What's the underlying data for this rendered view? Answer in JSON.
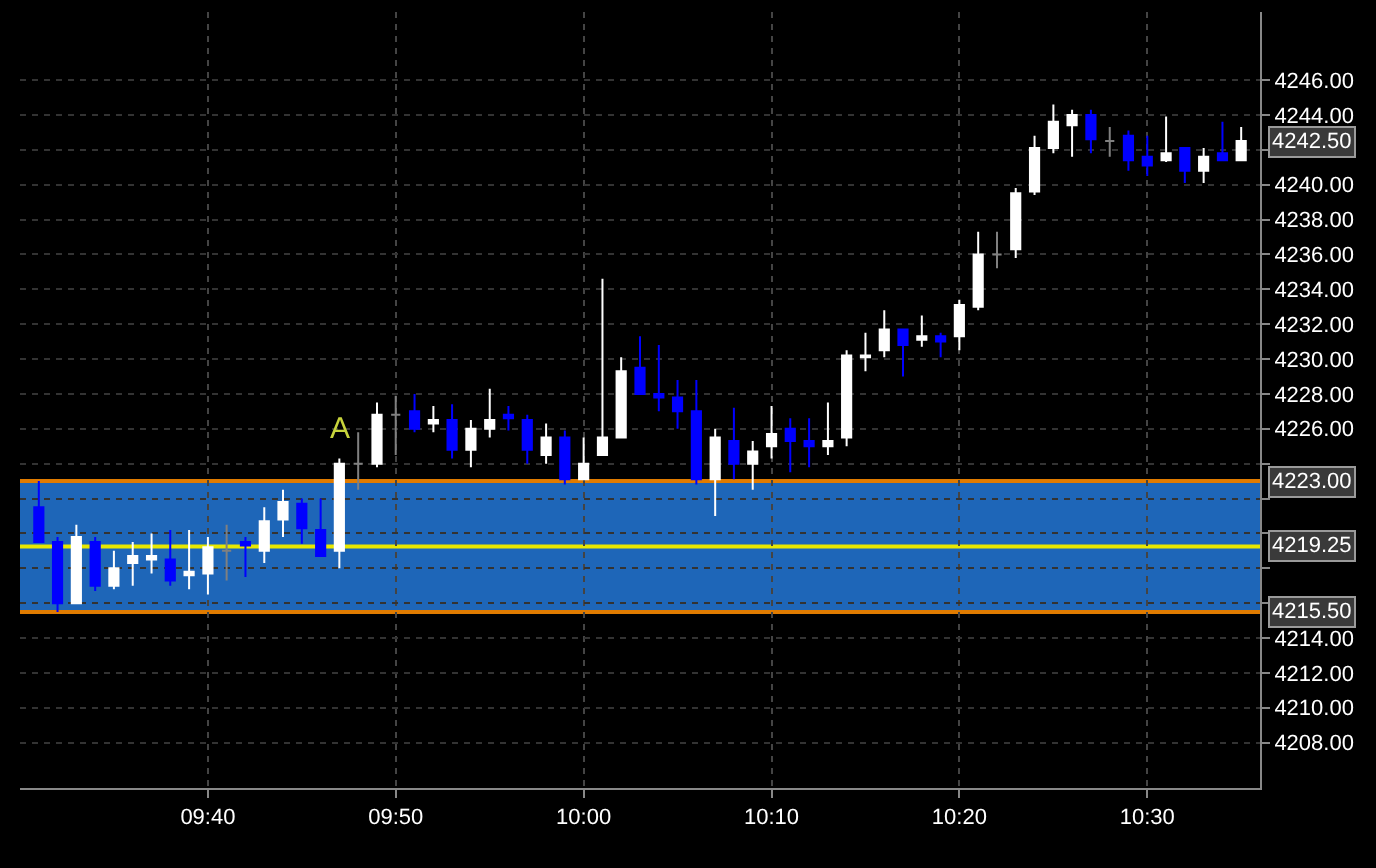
{
  "chart_data": {
    "type": "candlestick",
    "x": [
      9.5167,
      9.5333,
      9.55,
      9.5667,
      9.5833,
      9.6,
      9.6167,
      9.6333,
      9.65,
      9.6667,
      9.6833,
      9.7,
      9.7167,
      9.7333,
      9.75,
      9.7667,
      9.7833,
      9.8,
      9.8167,
      9.8333,
      9.85,
      9.8667,
      9.8833,
      9.9,
      9.9167,
      9.9333,
      9.95,
      9.9667,
      9.9833,
      10,
      10.0167,
      10.0333,
      10.05,
      10.0667,
      10.0833,
      10.1,
      10.1167,
      10.1333,
      10.15,
      10.1667,
      10.1833,
      10.2,
      10.2167,
      10.2333,
      10.25,
      10.2667,
      10.2833,
      10.3,
      10.3167,
      10.3333,
      10.35,
      10.3667,
      10.3833,
      10.4,
      10.4167,
      10.4333,
      10.45,
      10.4667,
      10.4833,
      10.5,
      10.5167,
      10.5333,
      10.55,
      10.5667,
      10.5833
    ],
    "ohlc": [
      [
        4221.5,
        4223.0,
        4219.5,
        4219.5
      ],
      [
        4219.5,
        4219.8,
        4215.5,
        4216.0
      ],
      [
        4216.0,
        4220.5,
        4216.0,
        4219.8
      ],
      [
        4219.5,
        4219.8,
        4216.7,
        4217.0
      ],
      [
        4217.0,
        4219.0,
        4216.8,
        4218.0
      ],
      [
        4218.3,
        4219.5,
        4217.0,
        4218.7
      ],
      [
        4218.5,
        4220.0,
        4217.7,
        4218.7
      ],
      [
        4218.5,
        4220.2,
        4217.0,
        4217.3
      ],
      [
        4217.6,
        4220.2,
        4216.8,
        4217.8
      ],
      [
        4217.7,
        4219.8,
        4216.5,
        4219.2
      ],
      [
        4219.0,
        4220.5,
        4217.3,
        4219.0
      ],
      [
        4219.5,
        4219.8,
        4217.5,
        4219.3
      ],
      [
        4219.0,
        4221.5,
        4218.3,
        4220.7
      ],
      [
        4220.8,
        4222.5,
        4219.8,
        4221.8
      ],
      [
        4221.7,
        4222.0,
        4219.4,
        4220.3
      ],
      [
        4220.2,
        4222.0,
        4218.7,
        4218.7
      ],
      [
        4219.0,
        4224.3,
        4218.0,
        4224.0
      ],
      [
        4224.0,
        4225.8,
        4222.5,
        4224.0
      ],
      [
        4224.0,
        4227.5,
        4223.8,
        4226.8
      ],
      [
        4226.8,
        4227.9,
        4224.5,
        4226.8
      ],
      [
        4227.0,
        4228.0,
        4225.8,
        4226.0
      ],
      [
        4226.3,
        4227.3,
        4225.8,
        4226.5
      ],
      [
        4226.5,
        4227.4,
        4224.3,
        4224.8
      ],
      [
        4224.8,
        4226.5,
        4223.8,
        4226.0
      ],
      [
        4226.0,
        4228.3,
        4225.5,
        4226.5
      ],
      [
        4226.8,
        4227.3,
        4225.9,
        4226.6
      ],
      [
        4226.5,
        4226.8,
        4224.0,
        4224.8
      ],
      [
        4224.5,
        4226.3,
        4224.0,
        4225.5
      ],
      [
        4225.5,
        4225.9,
        4222.8,
        4223.1
      ],
      [
        4223.1,
        4225.5,
        4223.1,
        4224.0
      ],
      [
        4224.5,
        4234.6,
        4224.5,
        4225.5
      ],
      [
        4225.5,
        4230.1,
        4225.5,
        4229.3
      ],
      [
        4229.5,
        4231.3,
        4228.0,
        4228.0
      ],
      [
        4228.0,
        4230.8,
        4227.0,
        4227.8
      ],
      [
        4227.8,
        4228.8,
        4226.0,
        4227.0
      ],
      [
        4227.0,
        4228.8,
        4222.8,
        4223.1
      ],
      [
        4223.1,
        4226.0,
        4221.0,
        4225.5
      ],
      [
        4225.3,
        4227.2,
        4223.1,
        4224.0
      ],
      [
        4224.0,
        4225.3,
        4222.5,
        4224.7
      ],
      [
        4225.0,
        4227.3,
        4224.3,
        4225.7
      ],
      [
        4226.0,
        4226.6,
        4223.5,
        4225.3
      ],
      [
        4225.3,
        4226.6,
        4223.8,
        4225.0
      ],
      [
        4225.0,
        4227.5,
        4224.5,
        4225.3
      ],
      [
        4225.5,
        4230.5,
        4225.0,
        4230.2
      ],
      [
        4230.1,
        4231.5,
        4229.3,
        4230.2
      ],
      [
        4230.5,
        4232.8,
        4230.1,
        4231.7
      ],
      [
        4231.7,
        4231.7,
        4229.0,
        4230.8
      ],
      [
        4231.1,
        4232.5,
        4230.7,
        4231.3
      ],
      [
        4231.3,
        4231.5,
        4230.1,
        4231.0
      ],
      [
        4231.3,
        4233.4,
        4230.5,
        4233.1
      ],
      [
        4233.0,
        4237.3,
        4232.8,
        4236.0
      ],
      [
        4236.0,
        4237.3,
        4235.2,
        4236.0
      ],
      [
        4236.3,
        4239.8,
        4235.8,
        4239.5
      ],
      [
        4239.6,
        4242.8,
        4239.4,
        4242.1
      ],
      [
        4242.1,
        4244.6,
        4241.8,
        4243.6
      ],
      [
        4243.4,
        4244.3,
        4241.6,
        4244.0
      ],
      [
        4244.0,
        4244.3,
        4241.8,
        4242.6
      ],
      [
        4242.5,
        4243.3,
        4241.6,
        4242.5
      ],
      [
        4242.8,
        4243.1,
        4240.8,
        4241.4
      ],
      [
        4241.6,
        4242.8,
        4240.5,
        4241.1
      ],
      [
        4241.4,
        4243.9,
        4241.3,
        4241.8
      ],
      [
        4242.1,
        4242.1,
        4240.1,
        4240.8
      ],
      [
        4240.8,
        4242.1,
        4240.1,
        4241.6
      ],
      [
        4241.8,
        4243.6,
        4241.4,
        4241.4
      ],
      [
        4241.4,
        4243.3,
        4241.4,
        4242.5
      ]
    ],
    "colors": [
      "#0000ff",
      "#0000ff",
      "#ffffff",
      "#0000ff",
      "#ffffff",
      "#ffffff",
      "#ffffff",
      "#0000ff",
      "#ffffff",
      "#ffffff",
      "#808080",
      "#0000ff",
      "#ffffff",
      "#ffffff",
      "#0000ff",
      "#0000ff",
      "#ffffff",
      "#808080",
      "#ffffff",
      "#808080",
      "#0000ff",
      "#ffffff",
      "#0000ff",
      "#ffffff",
      "#ffffff",
      "#0000ff",
      "#0000ff",
      "#ffffff",
      "#0000ff",
      "#ffffff",
      "#ffffff",
      "#ffffff",
      "#0000ff",
      "#0000ff",
      "#0000ff",
      "#0000ff",
      "#ffffff",
      "#0000ff",
      "#ffffff",
      "#ffffff",
      "#0000ff",
      "#0000ff",
      "#ffffff",
      "#ffffff",
      "#ffffff",
      "#ffffff",
      "#0000ff",
      "#ffffff",
      "#0000ff",
      "#ffffff",
      "#ffffff",
      "#808080",
      "#ffffff",
      "#ffffff",
      "#ffffff",
      "#ffffff",
      "#0000ff",
      "#808080",
      "#0000ff",
      "#0000ff",
      "#ffffff",
      "#0000ff",
      "#ffffff",
      "#0000ff",
      "#ffffff"
    ],
    "xlim": [
      9.5,
      10.6
    ],
    "xticks": [
      {
        "value": 9.6667,
        "label": "09:40"
      },
      {
        "value": 9.8333,
        "label": "09:50"
      },
      {
        "value": 10,
        "label": "10:00"
      },
      {
        "value": 10.1667,
        "label": "10:10"
      },
      {
        "value": 10.3333,
        "label": "10:20"
      },
      {
        "value": 10.5,
        "label": "10:30"
      }
    ],
    "ylim": [
      4205.4,
      4249.9
    ],
    "yticks": [
      {
        "value": 4208,
        "label": "4208.00"
      },
      {
        "value": 4210,
        "label": "4210.00"
      },
      {
        "value": 4212,
        "label": "4212.00"
      },
      {
        "value": 4214,
        "label": "4214.00"
      },
      {
        "value": 4216,
        "label": null
      },
      {
        "value": 4218,
        "label": null
      },
      {
        "value": 4220,
        "label": null
      },
      {
        "value": 4222,
        "label": null
      },
      {
        "value": 4224,
        "label": null
      },
      {
        "value": 4226,
        "label": "4226.00"
      },
      {
        "value": 4228,
        "label": "4228.00"
      },
      {
        "value": 4230,
        "label": "4230.00"
      },
      {
        "value": 4232,
        "label": "4232.00"
      },
      {
        "value": 4234,
        "label": "4234.00"
      },
      {
        "value": 4236,
        "label": "4236.00"
      },
      {
        "value": 4238,
        "label": "4238.00"
      },
      {
        "value": 4240,
        "label": "4240.00"
      },
      {
        "value": 4242,
        "label": null
      },
      {
        "value": 4244,
        "label": "4244.00"
      },
      {
        "value": 4246,
        "label": "4246.00"
      }
    ],
    "grid": true,
    "bands": [
      {
        "axis": "y",
        "from": 4215.5,
        "to": 4223,
        "color": "#1e66b8"
      }
    ],
    "ref_lines": [
      {
        "axis": "y",
        "value": 4223,
        "label": "4223.00",
        "color": "#e07b00"
      },
      {
        "axis": "y",
        "value": 4219.25,
        "label": "4219.25",
        "color": "#e8e800"
      },
      {
        "axis": "y",
        "value": 4215.5,
        "label": "4215.50",
        "color": "#e07b00"
      }
    ],
    "annotations": [
      {
        "text": "A",
        "x": 9.7833,
        "y": 4224.3
      },
      {
        "text": "4242.50",
        "x": 10.5833,
        "y": 4242.5
      }
    ]
  }
}
